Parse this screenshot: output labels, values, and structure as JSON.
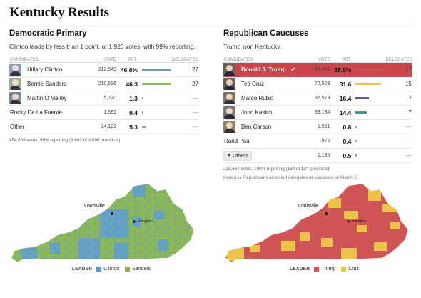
{
  "page": {
    "title": "Kentucky Results"
  },
  "colors": {
    "clinton": "#5b9bd5",
    "sanders": "#8bb655",
    "trump": "#cf5456",
    "cruz": "#eec24a",
    "rubio": "#6c5a8b",
    "kasich": "#3c9b97",
    "winner_row": "#c9464a"
  },
  "democratic": {
    "title": "Democratic Primary",
    "summary": "Clinton leads by less than 1 point, or 1,923 votes, with 99% reporting.",
    "headers": {
      "candidates": "CANDIDATES",
      "vote": "VOTE",
      "pct": "PCT.",
      "delegates": "DELEGATES"
    },
    "candidates": [
      {
        "name": "Hillary Clinton",
        "votes": "212,549",
        "pct": "46.8%",
        "pct_value": 46.8,
        "delegates": "27",
        "avatar": "clinton",
        "bar_color": "#5b9bd5"
      },
      {
        "name": "Bernie Sanders",
        "votes": "210,626",
        "pct": "46.3",
        "pct_value": 46.3,
        "delegates": "27",
        "avatar": "sanders",
        "bar_color": "#8bb655"
      },
      {
        "name": "Martin O’Malley",
        "votes": "5,720",
        "pct": "1.3",
        "pct_value": 1.3,
        "delegates": "—",
        "avatar": "omalley",
        "bar_color": "#999999"
      },
      {
        "name": "Rocky De La Fuente",
        "votes": "1,592",
        "pct": "0.4",
        "pct_value": 0.4,
        "delegates": "—",
        "avatar": null,
        "bar_color": "#999999"
      },
      {
        "name": "Other",
        "votes": "24,122",
        "pct": "5.3",
        "pct_value": 5.3,
        "delegates": "—",
        "avatar": null,
        "bar_color": "#999999"
      }
    ],
    "footnote": "454,609 votes, 99% reporting (3,692 of 3,696 precincts)",
    "map": {
      "city1": "Louisville",
      "city2": "Lexington"
    },
    "legend": {
      "title": "LEADER",
      "items": [
        {
          "label": "Clinton",
          "color": "#5b9bd5"
        },
        {
          "label": "Sanders",
          "color": "#8bb655"
        }
      ]
    }
  },
  "republican": {
    "title": "Republican Caucuses",
    "summary": "Trump won Kentucky.",
    "headers": {
      "candidates": "CANDIDATES",
      "vote": "VOTE",
      "pct": "PCT.",
      "delegates": "DELEGATES"
    },
    "candidates": [
      {
        "name": "Donald J. Trump",
        "votes": "82,493",
        "pct": "35.9%",
        "pct_value": 35.9,
        "delegates": "17",
        "avatar": "trump",
        "bar_color": "#cf5456",
        "winner": true
      },
      {
        "name": "Ted Cruz",
        "votes": "72,503",
        "pct": "31.6",
        "pct_value": 31.6,
        "delegates": "15",
        "avatar": "cruz",
        "bar_color": "#eec24a"
      },
      {
        "name": "Marco Rubio",
        "votes": "37,579",
        "pct": "16.4",
        "pct_value": 16.4,
        "delegates": "7",
        "avatar": "rubio",
        "bar_color": "#6c5a8b"
      },
      {
        "name": "John Kasich",
        "votes": "33,134",
        "pct": "14.4",
        "pct_value": 14.4,
        "delegates": "7",
        "avatar": "kasich",
        "bar_color": "#3c9b97"
      },
      {
        "name": "Ben Carson",
        "votes": "1,951",
        "pct": "0.8",
        "pct_value": 0.8,
        "delegates": "—",
        "avatar": "carson",
        "bar_color": "#999999"
      },
      {
        "name": "Rand Paul",
        "votes": "872",
        "pct": "0.4",
        "pct_value": 0.4,
        "delegates": "—",
        "avatar": null,
        "bar_color": "#999999"
      }
    ],
    "others": {
      "label": "Others",
      "votes": "1,135",
      "pct": "0.5",
      "pct_value": 0.5,
      "delegates": "—"
    },
    "footnote": "229,667 votes, 100% reporting (134 of 134 precincts)",
    "note": "Kentucky Republicans allocated delegates at caucuses on March 5.",
    "map": {
      "city1": "Louisville",
      "city2": "Lexington"
    },
    "legend": {
      "title": "LEADER",
      "items": [
        {
          "label": "Trump",
          "color": "#cf5456"
        },
        {
          "label": "Cruz",
          "color": "#eec24a"
        }
      ]
    }
  }
}
